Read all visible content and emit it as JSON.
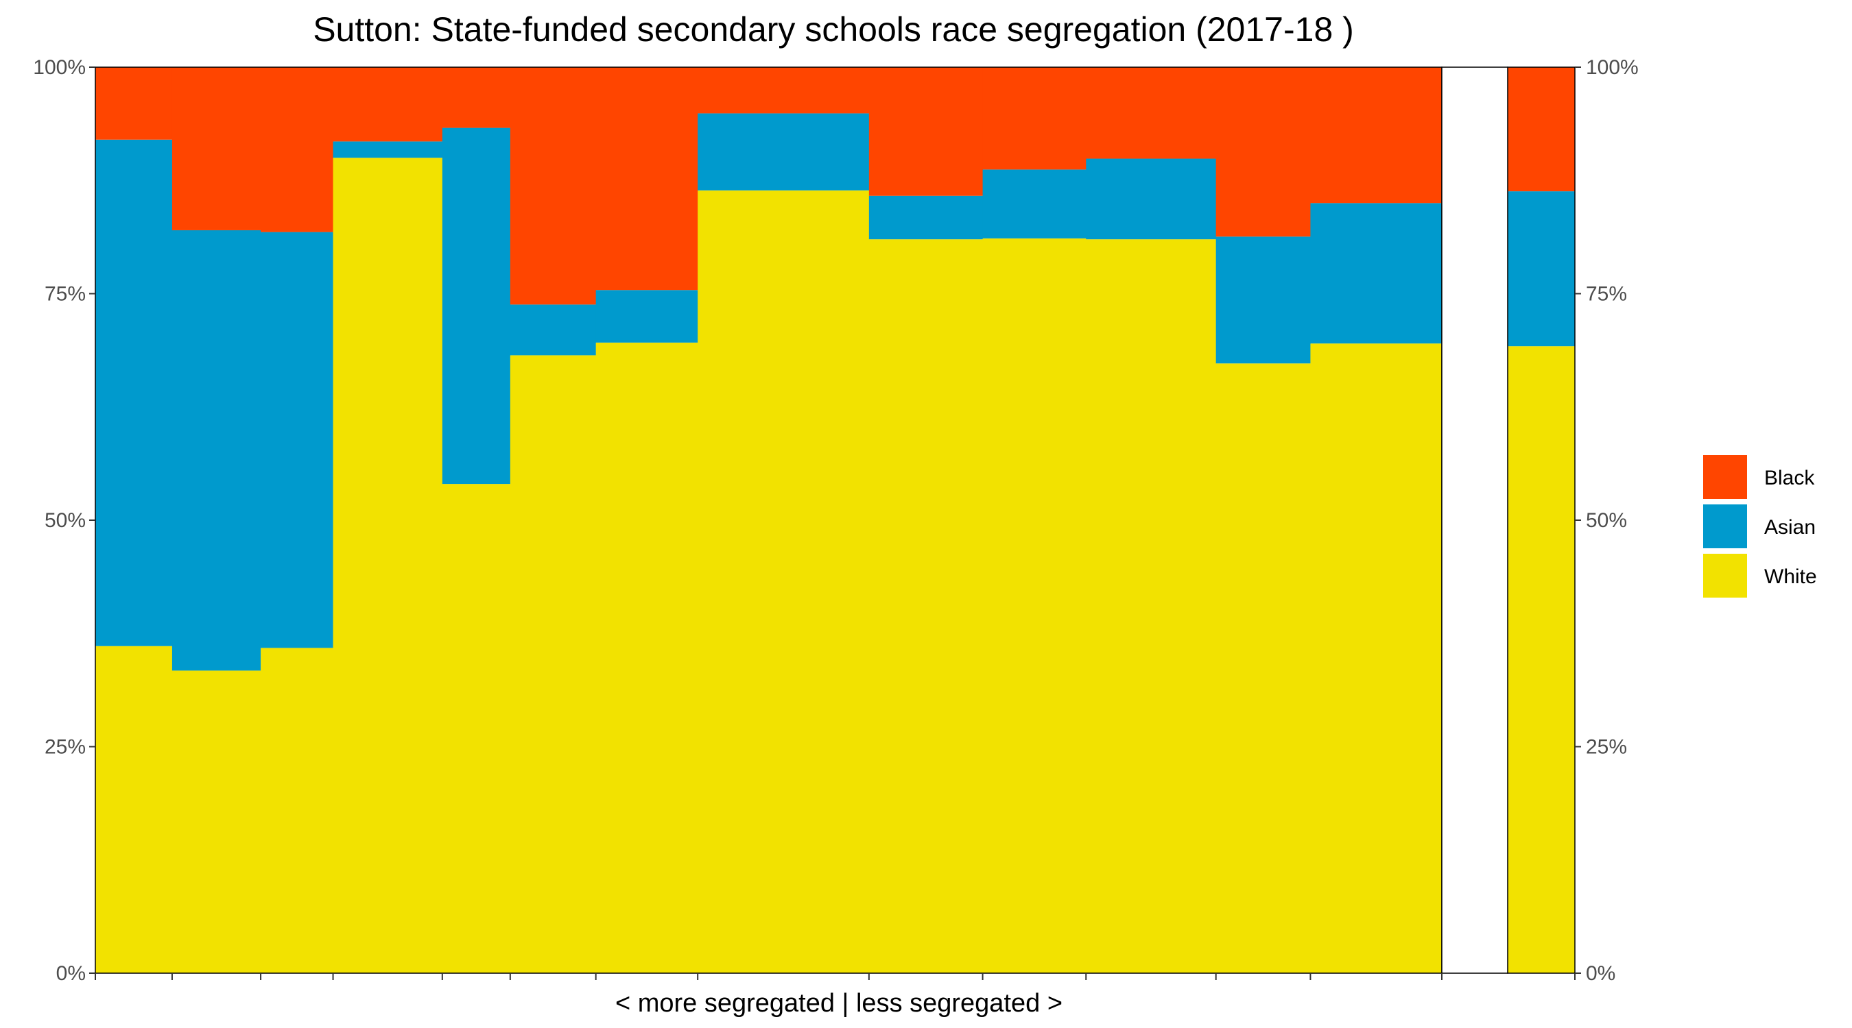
{
  "chart_data": {
    "type": "bar",
    "subtype": "stacked-variable-width-100-percent",
    "title": "Sutton: State-funded secondary schools race segregation (2017-18 )",
    "xlabel": "< more segregated | less segregated >",
    "ylabel": "",
    "y_ticks": [
      "0%",
      "25%",
      "50%",
      "75%",
      "100%"
    ],
    "ylim": [
      0,
      100
    ],
    "grid": false,
    "legend_position": "right",
    "series": [
      {
        "name": "White",
        "color": "#F2E200"
      },
      {
        "name": "Asian",
        "color": "#009ACD"
      },
      {
        "name": "Black",
        "color": "#FF4500"
      }
    ],
    "legend_order": [
      "Black",
      "Asian",
      "White"
    ],
    "bars": [
      {
        "width": 5.2,
        "white": 36.1,
        "asian": 55.9,
        "black": 8.0
      },
      {
        "width": 6.0,
        "white": 33.4,
        "asian": 48.6,
        "black": 18.0
      },
      {
        "width": 4.9,
        "white": 35.9,
        "asian": 45.9,
        "black": 18.2
      },
      {
        "width": 7.4,
        "white": 90.0,
        "asian": 1.8,
        "black": 8.2
      },
      {
        "width": 4.6,
        "white": 54.0,
        "asian": 39.3,
        "black": 6.7
      },
      {
        "width": 5.8,
        "white": 68.2,
        "asian": 5.6,
        "black": 26.2
      },
      {
        "width": 6.9,
        "white": 69.6,
        "asian": 5.8,
        "black": 24.6
      },
      {
        "width": 11.6,
        "white": 86.4,
        "asian": 8.5,
        "black": 5.1
      },
      {
        "width": 7.7,
        "white": 81.0,
        "asian": 4.8,
        "black": 14.2
      },
      {
        "width": 7.0,
        "white": 81.1,
        "asian": 7.6,
        "black": 11.3
      },
      {
        "width": 8.8,
        "white": 81.0,
        "asian": 8.9,
        "black": 10.1
      },
      {
        "width": 6.4,
        "white": 67.3,
        "asian": 14.0,
        "black": 18.7
      },
      {
        "width": 8.9,
        "white": 69.5,
        "asian": 15.5,
        "black": 15.0
      }
    ],
    "total_bar": {
      "white": 69.2,
      "asian": 17.1,
      "black": 13.7
    }
  }
}
